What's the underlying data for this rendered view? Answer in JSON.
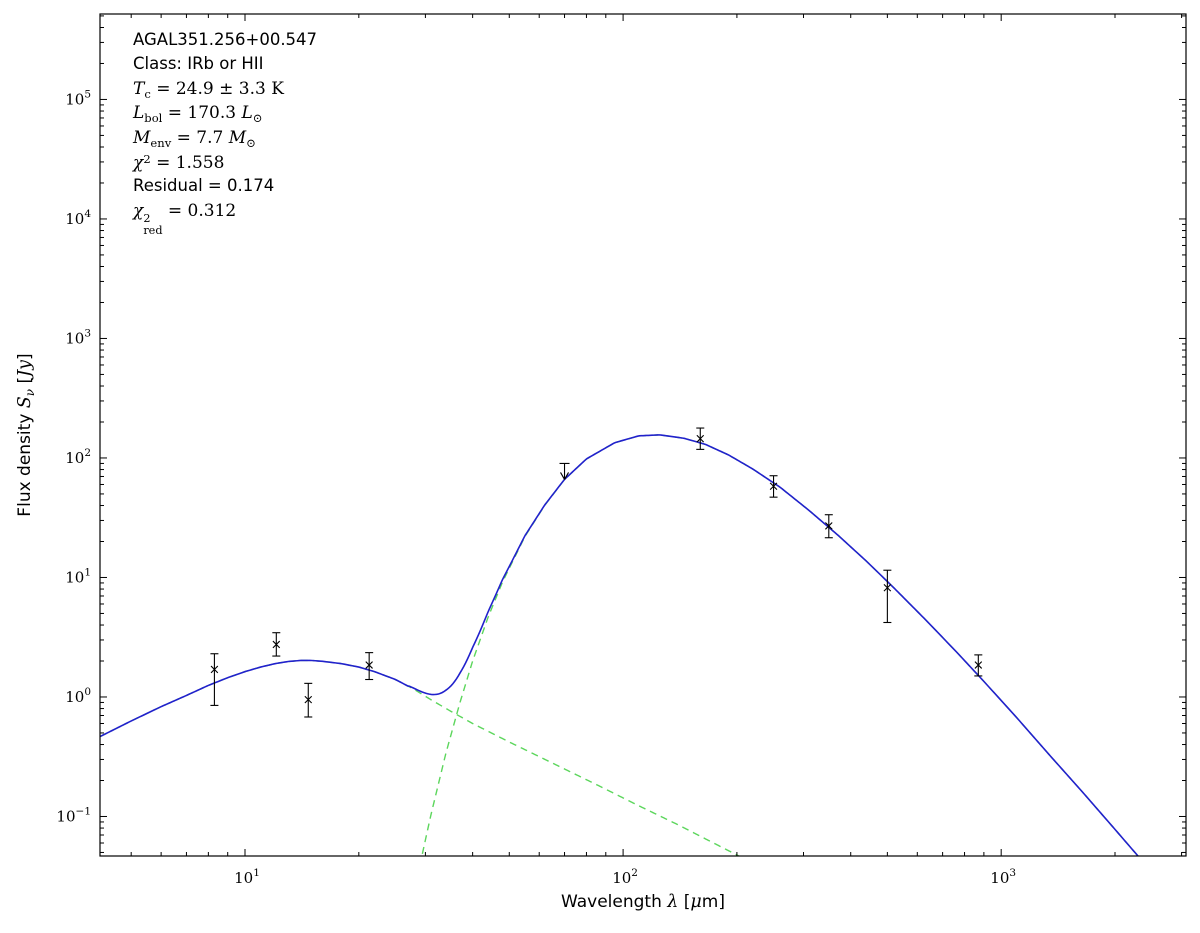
{
  "annotation": {
    "lines": [
      {
        "font": "sans",
        "tokens": [
          {
            "t": "AGAL351.256+00.547"
          }
        ]
      },
      {
        "font": "sans",
        "tokens": [
          {
            "t": "Class: IRb or HII"
          }
        ]
      },
      {
        "font": "serif",
        "tokens": [
          {
            "t": "T",
            "i": true,
            "sub": "c"
          },
          {
            "t": " = 24.9 ± 3.3 K"
          }
        ]
      },
      {
        "font": "serif",
        "tokens": [
          {
            "t": "L",
            "i": true,
            "sub": "bol"
          },
          {
            "t": " = 170.3 "
          },
          {
            "t": "L",
            "i": true,
            "sub": "⊙"
          }
        ]
      },
      {
        "font": "serif",
        "tokens": [
          {
            "t": "M",
            "i": true,
            "sub": "env"
          },
          {
            "t": " = 7.7 "
          },
          {
            "t": "M",
            "i": true,
            "sub": "⊙"
          }
        ]
      },
      {
        "font": "serif",
        "tokens": [
          {
            "t": "χ",
            "i": true,
            "sup": "2"
          },
          {
            "t": " = 1.558"
          }
        ]
      },
      {
        "font": "sans",
        "tokens": [
          {
            "t": "Residual = 0.174"
          }
        ]
      },
      {
        "font": "serif",
        "tokens": [
          {
            "t": "χ",
            "i": true,
            "sup": "2",
            "sub": "red"
          },
          {
            "t": " = 0.312"
          }
        ]
      }
    ]
  },
  "chart_data": {
    "type": "line",
    "title": "",
    "xlabel": "Wavelength λ [μm]",
    "ylabel": "Flux density Sν [Jy]",
    "x_scale": "log",
    "y_scale": "log",
    "xlim": [
      4.135,
      3082
    ],
    "ylim": [
      0.0467,
      518800
    ],
    "x_major_ticks": [
      10,
      100,
      1000
    ],
    "y_major_ticks": [
      0.1,
      1,
      10,
      100,
      1000,
      10000,
      100000
    ],
    "grid": false,
    "legend": "none",
    "colors": {
      "total": "#2121cc",
      "components": "#5cd65c",
      "data": "#000000",
      "frame": "#000000"
    },
    "series": [
      {
        "name": "warm-component",
        "style": "dashed",
        "color_key": "components",
        "anchors": [
          [
            4.1,
            0.46
          ],
          [
            5,
            0.63
          ],
          [
            6,
            0.83
          ],
          [
            7,
            1.03
          ],
          [
            8,
            1.25
          ],
          [
            9,
            1.45
          ],
          [
            10,
            1.63
          ],
          [
            11,
            1.78
          ],
          [
            12,
            1.9
          ],
          [
            13,
            1.98
          ],
          [
            14,
            2.02
          ],
          [
            15,
            2.02
          ],
          [
            16,
            1.99
          ],
          [
            18,
            1.9
          ],
          [
            20,
            1.78
          ],
          [
            22,
            1.63
          ],
          [
            25,
            1.4
          ],
          [
            28,
            1.16
          ],
          [
            31,
            0.95
          ],
          [
            35,
            0.76
          ],
          [
            40,
            0.6
          ],
          [
            50,
            0.42
          ],
          [
            65,
            0.28
          ],
          [
            85,
            0.185
          ],
          [
            110,
            0.123
          ],
          [
            140,
            0.085
          ],
          [
            170,
            0.062
          ],
          [
            210,
            0.044
          ],
          [
            235,
            0.036
          ]
        ]
      },
      {
        "name": "cold-greybody",
        "style": "dashed",
        "color_key": "components",
        "anchors": [
          [
            27,
            0.0125
          ],
          [
            29,
            0.039
          ],
          [
            31,
            0.102
          ],
          [
            34,
            0.34
          ],
          [
            37,
            0.89
          ],
          [
            40,
            2.0
          ],
          [
            44,
            4.7
          ],
          [
            48,
            9.2
          ],
          [
            55,
            22
          ],
          [
            62,
            40
          ],
          [
            70,
            66
          ],
          [
            80,
            98
          ],
          [
            95,
            134
          ],
          [
            110,
            153
          ],
          [
            125,
            156
          ],
          [
            145,
            146
          ],
          [
            165,
            130
          ],
          [
            190,
            106
          ],
          [
            220,
            81
          ],
          [
            260,
            57
          ],
          [
            310,
            36.5
          ],
          [
            370,
            22.6
          ],
          [
            440,
            13.7
          ],
          [
            520,
            8.2
          ],
          [
            630,
            4.45
          ],
          [
            760,
            2.4
          ],
          [
            900,
            1.35
          ],
          [
            1100,
            0.67
          ],
          [
            1350,
            0.32
          ],
          [
            1650,
            0.157
          ],
          [
            2000,
            0.078
          ],
          [
            2400,
            0.04
          ]
        ]
      },
      {
        "name": "total-model",
        "style": "solid",
        "color_key": "total",
        "compose": "sum-of-components"
      }
    ],
    "data_points": [
      {
        "wavelength_um": 8.3,
        "flux_jy": 1.7,
        "flux_lo": 0.85,
        "flux_hi": 2.3
      },
      {
        "wavelength_um": 12.1,
        "flux_jy": 2.75,
        "flux_lo": 2.2,
        "flux_hi": 3.45
      },
      {
        "wavelength_um": 14.7,
        "flux_jy": 0.95,
        "flux_lo": 0.68,
        "flux_hi": 1.3
      },
      {
        "wavelength_um": 21.3,
        "flux_jy": 1.85,
        "flux_lo": 1.4,
        "flux_hi": 2.35
      },
      {
        "wavelength_um": 70,
        "flux_jy": 90,
        "upper_limit": true
      },
      {
        "wavelength_um": 160,
        "flux_jy": 145,
        "flux_lo": 118,
        "flux_hi": 178
      },
      {
        "wavelength_um": 250,
        "flux_jy": 58,
        "flux_lo": 47,
        "flux_hi": 71
      },
      {
        "wavelength_um": 350,
        "flux_jy": 27,
        "flux_lo": 21.5,
        "flux_hi": 33.5
      },
      {
        "wavelength_um": 500,
        "flux_jy": 8.2,
        "flux_lo": 4.2,
        "flux_hi": 11.5
      },
      {
        "wavelength_um": 870,
        "flux_jy": 1.85,
        "flux_lo": 1.5,
        "flux_hi": 2.25
      }
    ]
  }
}
